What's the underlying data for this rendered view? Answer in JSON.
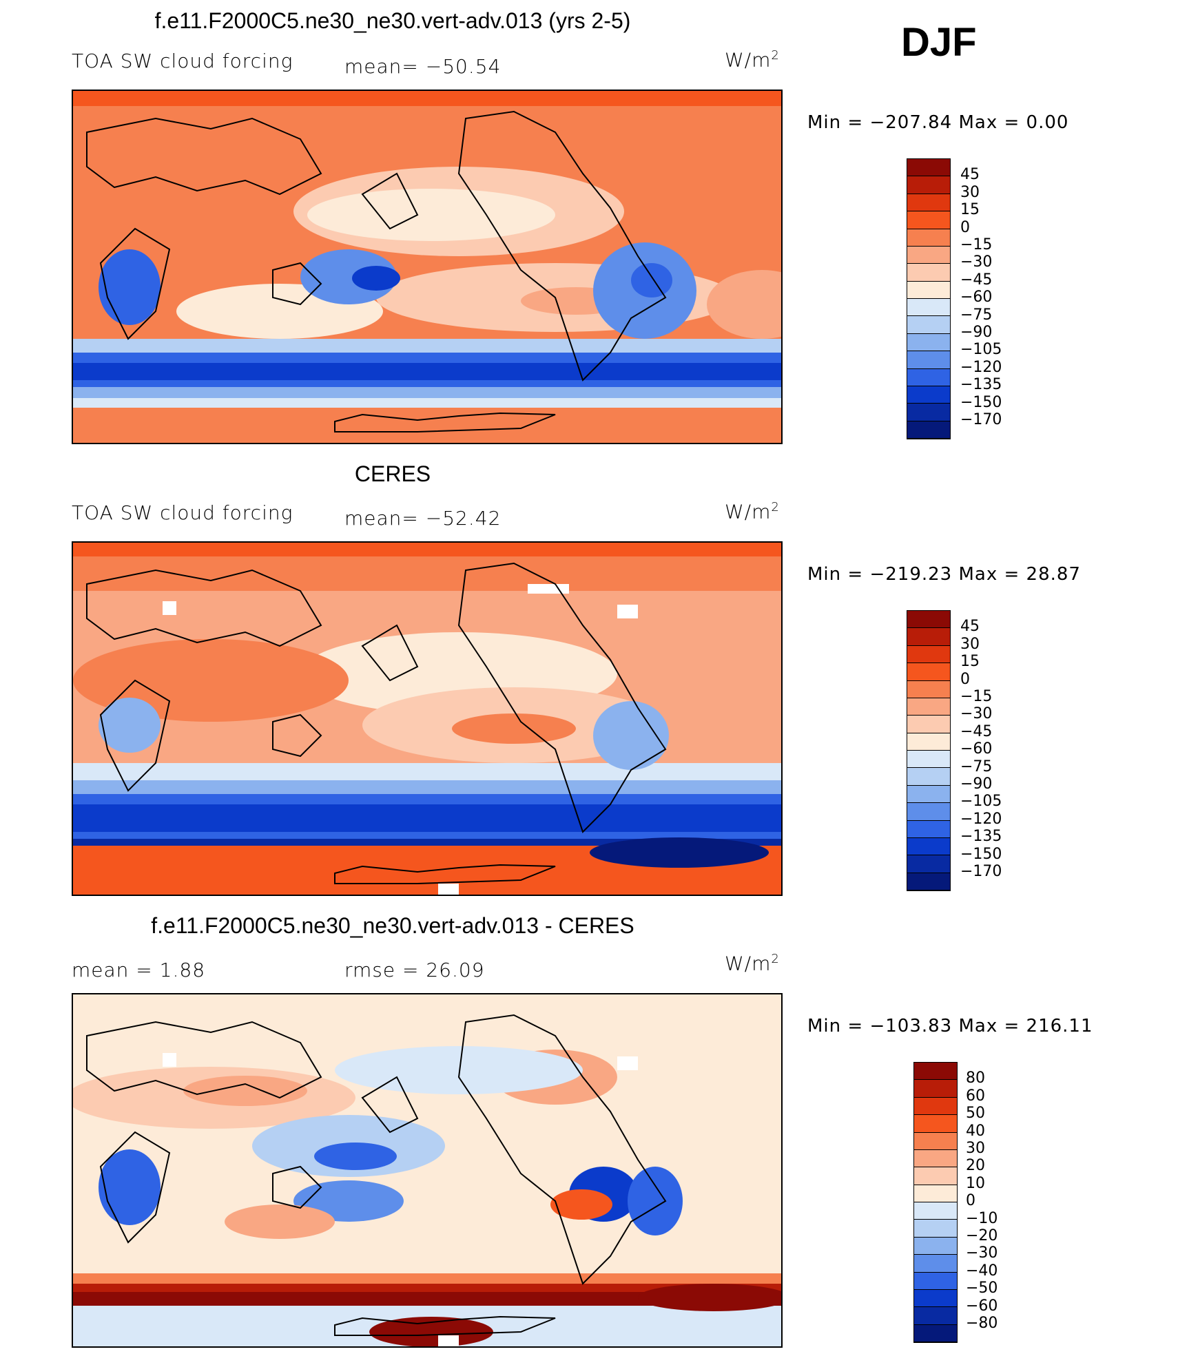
{
  "season": "DJF",
  "panels": [
    {
      "id": "model",
      "title": "f.e11.F2000C5.ne30_ne30.vert-adv.013 (yrs 2-5)",
      "left_label": "TOA SW cloud forcing",
      "mid_label": "mean= −50.54",
      "units": "W/m",
      "units_sup": "2",
      "minmax": "Min = −207.84 Max =    0.00",
      "colorbar_labels": [
        "45",
        "30",
        "15",
        "0",
        "−15",
        "−30",
        "−45",
        "−60",
        "−75",
        "−90",
        "−105",
        "−120",
        "−135",
        "−150",
        "−170"
      ]
    },
    {
      "id": "obs",
      "title": "CERES",
      "left_label": "TOA SW cloud forcing",
      "mid_label": "mean= −52.42",
      "units": "W/m",
      "units_sup": "2",
      "minmax": "Min = −219.23 Max =   28.87",
      "colorbar_labels": [
        "45",
        "30",
        "15",
        "0",
        "−15",
        "−30",
        "−45",
        "−60",
        "−75",
        "−90",
        "−105",
        "−120",
        "−135",
        "−150",
        "−170"
      ]
    },
    {
      "id": "diff",
      "title": "f.e11.F2000C5.ne30_ne30.vert-adv.013 - CERES",
      "left_label": "mean =    1.88",
      "mid_label": "rmse =   26.09",
      "units": "W/m",
      "units_sup": "2",
      "minmax": "Min = −103.83 Max = 216.11",
      "colorbar_labels": [
        "80",
        "60",
        "50",
        "40",
        "30",
        "20",
        "10",
        "0",
        "−10",
        "−20",
        "−30",
        "−40",
        "−50",
        "−60",
        "−80"
      ]
    }
  ],
  "colors": {
    "main_scale": [
      "#8b0a05",
      "#b81d08",
      "#e0380f",
      "#f5561e",
      "#f6804f",
      "#f9a783",
      "#fccbb1",
      "#fdebd8",
      "#d9e8f8",
      "#b5d0f3",
      "#8bb2ee",
      "#5e8eea",
      "#2f63e4",
      "#0b3bcb",
      "#082aa2",
      "#05197a"
    ],
    "diff_scale": [
      "#8b0a05",
      "#b81d08",
      "#e0380f",
      "#f5561e",
      "#f6804f",
      "#f9a783",
      "#fccbb1",
      "#fdebd8",
      "#d9e8f8",
      "#b5d0f3",
      "#8bb2ee",
      "#5e8eea",
      "#2f63e4",
      "#0b3bcb",
      "#082aa2",
      "#05197a"
    ]
  }
}
